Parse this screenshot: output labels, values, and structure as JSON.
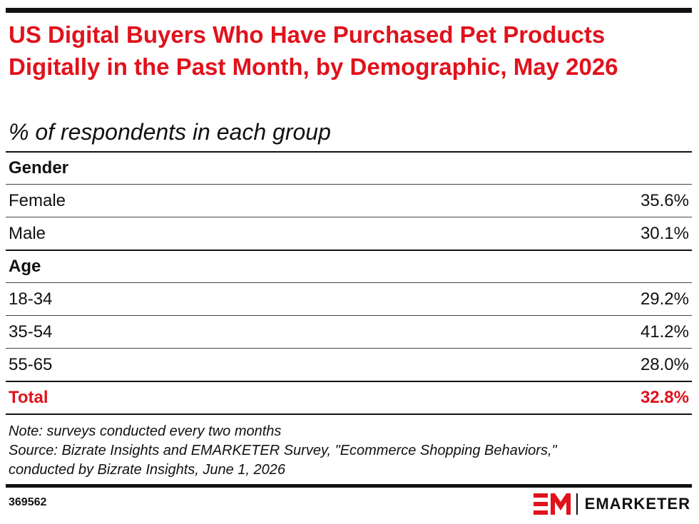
{
  "header": {
    "title": "US Digital Buyers Who Have Purchased Pet Products Digitally in the Past Month, by Demographic, May 2026",
    "subtitle": "% of respondents in each group"
  },
  "chart_data": {
    "type": "table",
    "sections": [
      {
        "name": "Gender",
        "rows": [
          {
            "label": "Female",
            "value": "35.6%"
          },
          {
            "label": "Male",
            "value": "30.1%"
          }
        ]
      },
      {
        "name": "Age",
        "rows": [
          {
            "label": "18-34",
            "value": "29.2%"
          },
          {
            "label": "35-54",
            "value": "41.2%"
          },
          {
            "label": "55-65",
            "value": "28.0%"
          }
        ]
      }
    ],
    "total": {
      "label": "Total",
      "value": "32.8%"
    }
  },
  "footer": {
    "note": "Note: surveys conducted every two months",
    "source_line1": "Source:  Bizrate Insights and EMARKETER Survey, \"Ecommerce Shopping Behaviors,\"",
    "source_line2": "conducted by Bizrate Insights, June 1, 2026",
    "chart_id": "369562",
    "brand_name": "EMARKETER",
    "brand_icon": "em-logo-icon"
  },
  "colors": {
    "accent": "#e0121c",
    "text": "#111111"
  }
}
